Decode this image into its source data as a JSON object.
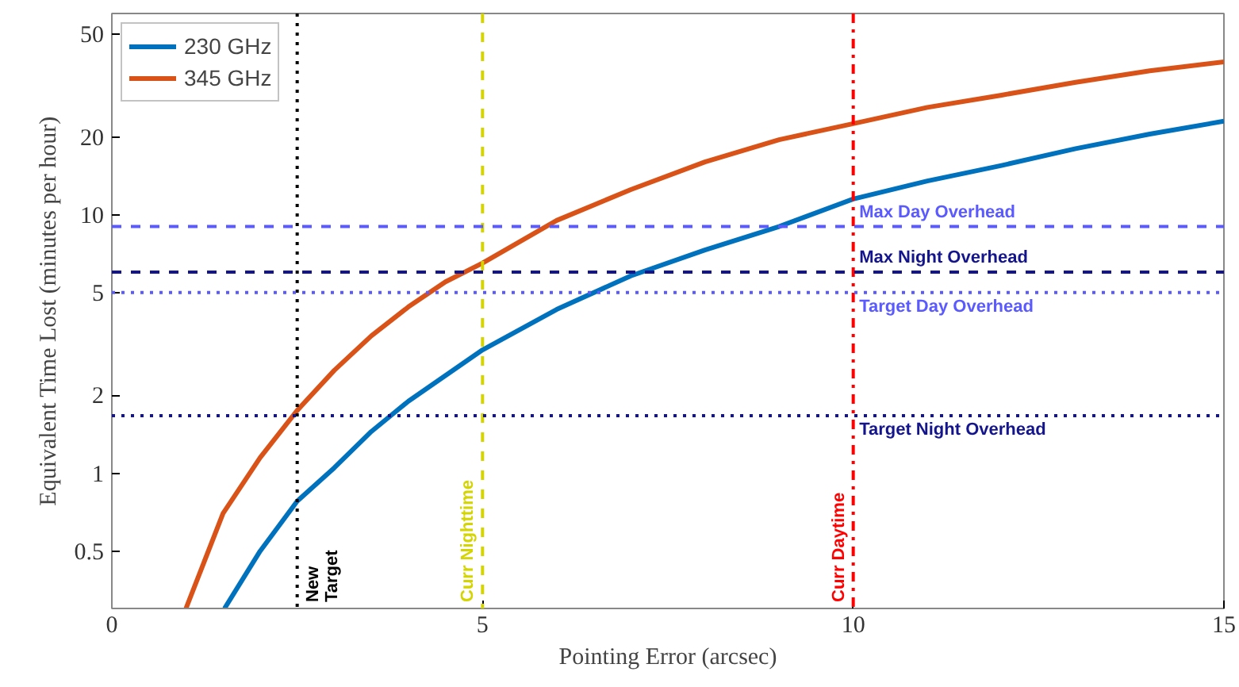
{
  "chart_data": {
    "type": "line",
    "xlabel": "Pointing Error (arcsec)",
    "ylabel": "Equivalent Time Lost (minutes per hour)",
    "log": "y",
    "xlim": [
      0,
      15
    ],
    "ylim": [
      0.3,
      60
    ],
    "xticks": [
      0,
      5,
      10,
      15
    ],
    "yticks": [
      0.5,
      1,
      2,
      5,
      10,
      20,
      50
    ],
    "legend": "top left",
    "line_style": "solid",
    "series": [
      {
        "name": "230 GHz",
        "color": "#0072bd",
        "x": [
          1.52,
          2,
          2.5,
          3,
          3.5,
          4,
          5,
          6,
          7,
          8,
          9,
          10,
          11,
          12,
          13,
          14,
          15
        ],
        "values": [
          0.3,
          0.5,
          0.78,
          1.05,
          1.45,
          1.9,
          3.0,
          4.3,
          5.8,
          7.3,
          9.0,
          11.5,
          13.5,
          15.5,
          18,
          20.5,
          23
        ]
      },
      {
        "name": "345 GHz",
        "color": "#d95319",
        "x": [
          1.0,
          1.5,
          2,
          2.5,
          3,
          3.5,
          4,
          4.5,
          5,
          6,
          7,
          8,
          9,
          10,
          11,
          12,
          13,
          14,
          15
        ],
        "values": [
          0.3,
          0.7,
          1.15,
          1.75,
          2.5,
          3.4,
          4.4,
          5.5,
          6.5,
          9.5,
          12.5,
          16,
          19.5,
          22.5,
          26,
          29,
          32.5,
          36,
          39
        ]
      }
    ],
    "ref_lines": [
      {
        "axis": "x",
        "value": 2.5,
        "label": "New\nTarget",
        "color": "#000000",
        "line_style": "dotted"
      },
      {
        "axis": "x",
        "value": 5,
        "label": "Curr Nighttime",
        "color": "#d4d400",
        "line_style": "dashed"
      },
      {
        "axis": "x",
        "value": 10,
        "label": "Curr Daytime",
        "color": "#ff0000",
        "line_style": "dashdot"
      },
      {
        "axis": "y",
        "value": 9,
        "label": "Max Day Overhead",
        "color": "#5a5aff",
        "line_style": "dashed"
      },
      {
        "axis": "y",
        "value": 6,
        "label": "Max Night Overhead",
        "color": "#14148c",
        "line_style": "dashed"
      },
      {
        "axis": "y",
        "value": 5,
        "label": "Target Day Overhead",
        "color": "#5a5aff",
        "line_style": "dotted"
      },
      {
        "axis": "y",
        "value": 1.67,
        "label": "Target Night Overhead",
        "color": "#14148c",
        "line_style": "dotted"
      }
    ]
  }
}
